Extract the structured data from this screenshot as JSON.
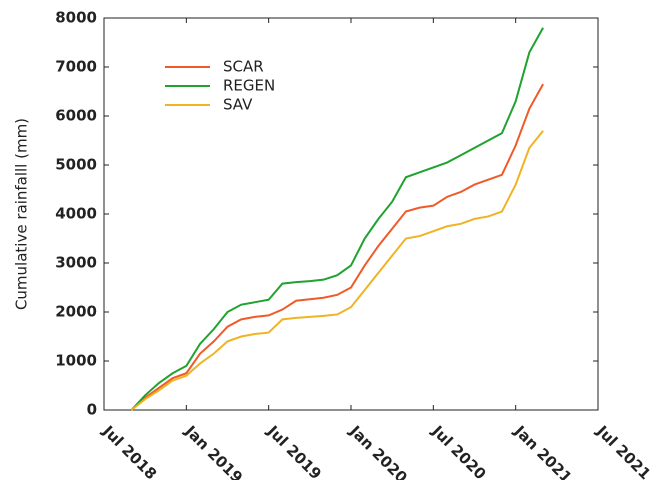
{
  "chart_data": {
    "type": "line",
    "y_label": "Cumulative rainfalll  (mm)",
    "x": [
      "2018-09",
      "2018-10",
      "2018-11",
      "2018-12",
      "2019-01",
      "2019-02",
      "2019-03",
      "2019-04",
      "2019-05",
      "2019-06",
      "2019-07",
      "2019-08",
      "2019-09",
      "2019-10",
      "2019-11",
      "2019-12",
      "2020-01",
      "2020-02",
      "2020-03",
      "2020-04",
      "2020-05",
      "2020-06",
      "2020-07",
      "2020-08",
      "2020-09",
      "2020-10",
      "2020-11",
      "2020-12",
      "2021-01",
      "2021-02",
      "2021-03"
    ],
    "series": [
      {
        "name": "SCAR",
        "color": "#f05a28",
        "values": [
          0,
          250,
          450,
          650,
          750,
          1150,
          1400,
          1700,
          1850,
          1900,
          1930,
          2050,
          2230,
          2260,
          2290,
          2350,
          2500,
          2950,
          3350,
          3700,
          4050,
          4130,
          4170,
          4350,
          4450,
          4600,
          4700,
          4800,
          5400,
          6150,
          6650
        ]
      },
      {
        "name": "REGEN",
        "color": "#1fa22e",
        "values": [
          0,
          300,
          550,
          750,
          900,
          1350,
          1650,
          2000,
          2150,
          2200,
          2250,
          2580,
          2610,
          2630,
          2660,
          2750,
          2950,
          3500,
          3900,
          4250,
          4750,
          4850,
          4950,
          5050,
          5200,
          5350,
          5500,
          5650,
          6300,
          7300,
          7800
        ]
      },
      {
        "name": "SAV",
        "color": "#f0b323",
        "values": [
          0,
          220,
          400,
          600,
          700,
          950,
          1150,
          1400,
          1500,
          1550,
          1580,
          1850,
          1880,
          1900,
          1920,
          1950,
          2100,
          2450,
          2800,
          3150,
          3500,
          3550,
          3650,
          3750,
          3800,
          3900,
          3950,
          4050,
          4600,
          5350,
          5700
        ]
      }
    ],
    "xlim": [
      "2018-07",
      "2021-07"
    ],
    "xticks": [
      {
        "value": "2018-07",
        "label": "Jul 2018"
      },
      {
        "value": "2019-01",
        "label": "Jan 2019"
      },
      {
        "value": "2019-07",
        "label": "Jul 2019"
      },
      {
        "value": "2020-01",
        "label": "Jan 2020"
      },
      {
        "value": "2020-07",
        "label": "Jul 2020"
      },
      {
        "value": "2021-01",
        "label": "Jan 2021"
      },
      {
        "value": "2021-07",
        "label": "Jul 2021"
      }
    ],
    "ylim": [
      0,
      8000
    ],
    "yticks": [
      0,
      1000,
      2000,
      3000,
      4000,
      5000,
      6000,
      7000,
      8000
    ],
    "legend": "upper left"
  }
}
